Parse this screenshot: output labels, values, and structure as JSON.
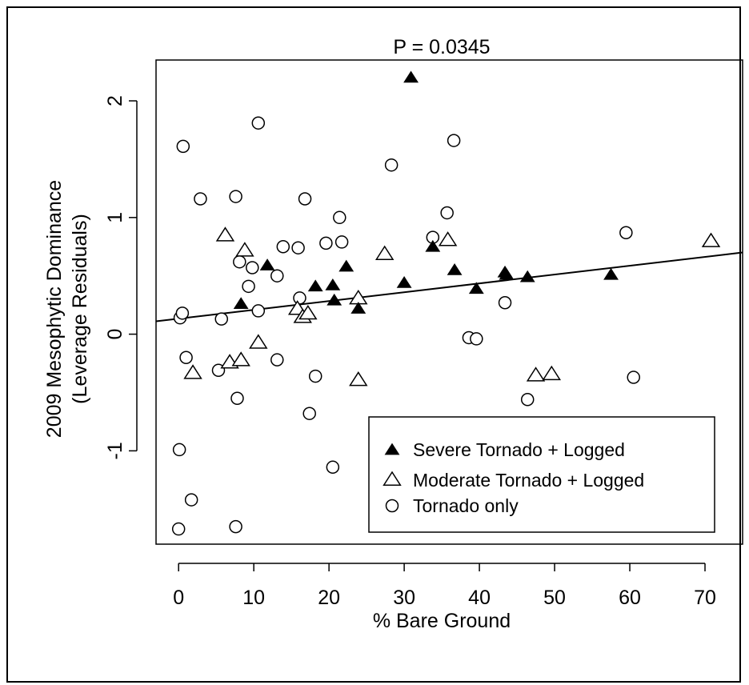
{
  "chart_data": {
    "type": "scatter",
    "title": "P = 0.0345",
    "xlabel": "% Bare Ground",
    "ylabel_lines": [
      "2009 Mesophytic Dominance",
      "(Leverage Residuals)"
    ],
    "xlim": [
      -3,
      75
    ],
    "ylim": [
      -1.8,
      2.35
    ],
    "xticks": [
      0,
      10,
      20,
      30,
      40,
      50,
      60,
      70
    ],
    "yticks": [
      -1,
      0,
      1,
      2
    ],
    "xtick_labels": [
      "0",
      "10",
      "20",
      "30",
      "40",
      "50",
      "60",
      "70"
    ],
    "ytick_labels": [
      "-1",
      "0",
      "1",
      "2"
    ],
    "grid": false,
    "legend_position": "bottom-right",
    "legend": [
      {
        "label": "Severe Tornado + Logged",
        "marker": "filled-triangle"
      },
      {
        "label": "Moderate Tornado + Logged",
        "marker": "open-triangle"
      },
      {
        "label": "Tornado only",
        "marker": "open-circle"
      }
    ],
    "regression_line": {
      "x": [
        -3,
        75
      ],
      "y": [
        0.11,
        0.7
      ]
    },
    "series": [
      {
        "name": "Severe Tornado + Logged",
        "marker": "filled-triangle",
        "x": [
          8.3,
          11.8,
          18.2,
          20.5,
          20.7,
          22.3,
          23.9,
          30.0,
          30.9,
          33.8,
          36.7,
          39.6,
          43.4,
          43.6,
          46.4,
          57.5
        ],
        "y": [
          0.26,
          0.59,
          0.41,
          0.42,
          0.29,
          0.58,
          0.22,
          0.44,
          2.2,
          0.75,
          0.55,
          0.39,
          0.53,
          0.51,
          0.49,
          0.51
        ]
      },
      {
        "name": "Moderate Tornado + Logged",
        "marker": "open-triangle",
        "x": [
          1.9,
          6.2,
          6.8,
          8.3,
          8.8,
          10.6,
          15.8,
          16.5,
          17.2,
          23.9,
          23.9,
          27.4,
          35.8,
          47.5,
          49.6,
          70.8
        ],
        "y": [
          -0.33,
          0.85,
          -0.24,
          -0.22,
          0.72,
          -0.07,
          0.22,
          0.15,
          0.18,
          0.31,
          -0.39,
          0.69,
          0.81,
          -0.35,
          -0.34,
          0.8
        ]
      },
      {
        "name": "Tornado only",
        "marker": "open-circle",
        "x": [
          0.0,
          0.2,
          0.5,
          0.6,
          1.0,
          1.7,
          0.1,
          2.9,
          5.3,
          5.7,
          7.6,
          7.8,
          7.6,
          8.1,
          9.3,
          9.8,
          10.6,
          10.6,
          13.1,
          13.1,
          13.9,
          15.9,
          16.1,
          16.8,
          17.4,
          18.2,
          19.6,
          20.5,
          21.4,
          21.7,
          28.3,
          33.8,
          35.7,
          36.6,
          38.6,
          39.6,
          43.4,
          46.4,
          59.5,
          60.5
        ],
        "y": [
          -1.67,
          0.14,
          0.18,
          1.61,
          -0.2,
          -1.42,
          -0.99,
          1.16,
          -0.31,
          0.13,
          -1.65,
          -0.55,
          1.18,
          0.62,
          0.41,
          0.57,
          1.81,
          0.2,
          0.5,
          -0.22,
          0.75,
          0.74,
          0.31,
          1.16,
          -0.68,
          -0.36,
          0.78,
          -1.14,
          1.0,
          0.79,
          1.45,
          0.83,
          1.04,
          1.66,
          -0.03,
          -0.04,
          0.27,
          -0.56,
          0.87,
          -0.37
        ]
      }
    ]
  }
}
